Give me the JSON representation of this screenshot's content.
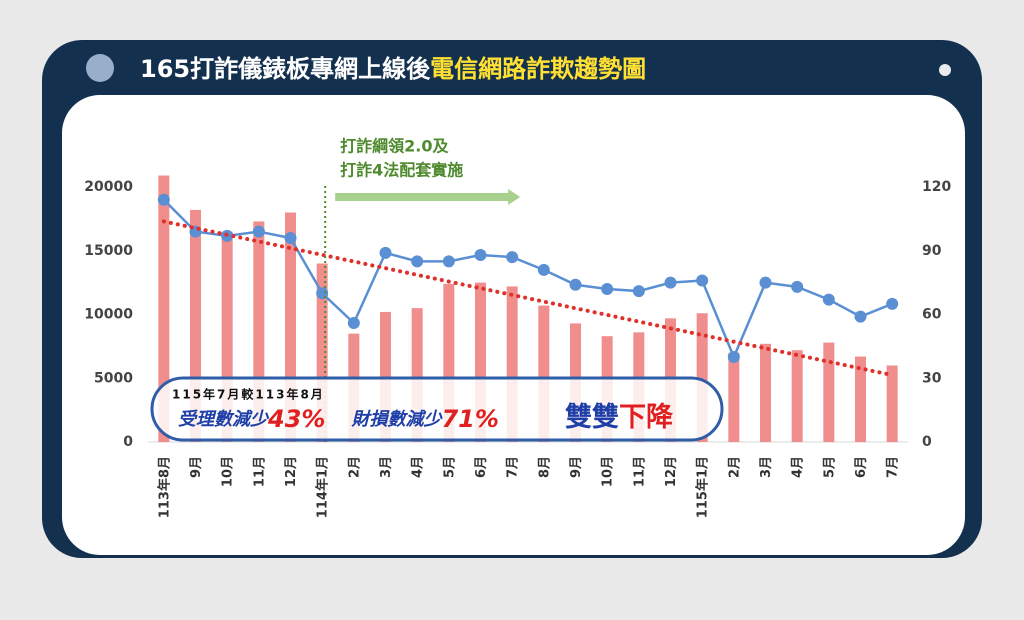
{
  "chart_data": {
    "type": "bar_line",
    "title": "165打詐儀錶板專網上線後",
    "title_highlight": "電信網路詐欺趨勢圖",
    "categories": [
      "113年8月",
      "9月",
      "10月",
      "11月",
      "12月",
      "114年1月",
      "2月",
      "3月",
      "4月",
      "5月",
      "6月",
      "7月",
      "8月",
      "9月",
      "10月",
      "11月",
      "12月",
      "115年1月",
      "2月",
      "3月",
      "4月",
      "5月",
      "6月",
      "7月"
    ],
    "series": [
      {
        "type": "bar",
        "color": "#f08e8e",
        "values": [
          20900,
          18200,
          16500,
          17300,
          18000,
          14000,
          8500,
          10200,
          10500,
          12400,
          12500,
          12200,
          10700,
          9300,
          8300,
          8600,
          9700,
          10100,
          7000,
          7700,
          7200,
          7800,
          6700,
          6000
        ]
      },
      {
        "type": "line",
        "axis": "y2",
        "color": "#5b8fd3",
        "values": [
          114,
          99,
          97,
          99,
          96,
          70,
          56,
          89,
          85,
          85,
          88,
          87,
          81,
          74,
          72,
          71,
          75,
          76,
          40,
          75,
          73,
          67,
          59,
          65
        ]
      }
    ],
    "trend": {
      "color": "#e0302a",
      "start": 17300,
      "end": 5250
    },
    "ylim": [
      0,
      20000
    ],
    "yticks": [
      0,
      5000,
      10000,
      15000,
      20000
    ],
    "y2lim": [
      0,
      120
    ],
    "y2ticks": [
      0,
      30,
      60,
      90,
      120
    ],
    "event": {
      "category": "114年1月",
      "lines": [
        "打詐綱領2.0及",
        "打詐4法配套實施"
      ],
      "color": "#4f8a2e"
    },
    "banner": {
      "period": "115年7月較113年8月",
      "item1": "受理數減少",
      "value1": "43%",
      "item2": "財損數減少",
      "value2": "71%",
      "summary1": "雙雙",
      "summary2": "下降"
    }
  }
}
